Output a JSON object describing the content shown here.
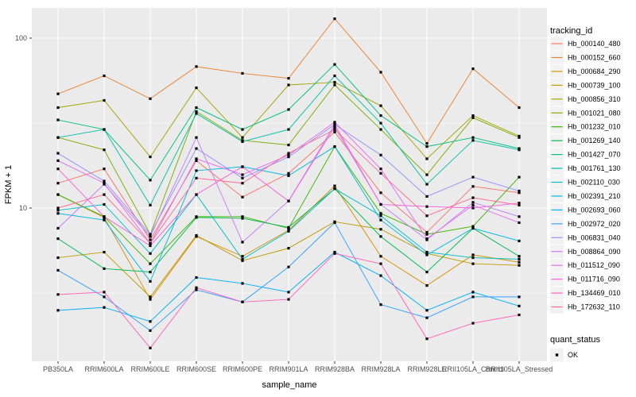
{
  "figure": {
    "background": "#FFFFFF",
    "panel_background": "#EBEBEB",
    "gridline_color": "#FFFFFF",
    "tick_color": "#333333",
    "tick_label_color": "#4D4D4D",
    "axis_title_color": "#000000",
    "marker_color": "#000000",
    "legend_key_fill": "#F2F2F2"
  },
  "chart_data": {
    "type": "line",
    "title": "",
    "xlabel": "sample_name",
    "ylabel": "FPKM + 1",
    "y_scale": "log10",
    "y_ticks": [
      100,
      10
    ],
    "y_minor_ticks": [
      31.623,
      3.162
    ],
    "ylim": [
      1.25,
      150
    ],
    "grid": true,
    "legend_position": "right",
    "color_legend_title": "tracking_id",
    "shape_legend_title": "quant_status",
    "shape_legend_items": [
      "OK"
    ],
    "categories": [
      "PB350LA",
      "RRIM600LA",
      "RRIM600LE",
      "RRIM600SE",
      "RRIM600PE",
      "RRIM901LA",
      "RRIM928BA",
      "RRIM928LA",
      "RRIM928LE",
      "RRII105LA_Control",
      "RRII105LA_Stressed"
    ],
    "series": [
      {
        "name": "Hb_000140_480",
        "color": "#F8766D",
        "values": [
          14,
          17,
          6.5,
          19,
          11.6,
          16,
          28,
          12.3,
          7.2,
          13.4,
          12.3
        ]
      },
      {
        "name": "Hb_000152_660",
        "color": "#EA8331",
        "values": [
          47,
          60,
          44,
          68,
          62,
          58,
          130,
          63,
          24,
          66,
          39
        ]
      },
      {
        "name": "Hb_000684_290",
        "color": "#D89000",
        "values": [
          12,
          8.8,
          2.9,
          6.8,
          5.2,
          7.4,
          13.5,
          5.2,
          3.5,
          5.3,
          4.8
        ]
      },
      {
        "name": "Hb_000739_100",
        "color": "#C09B00",
        "values": [
          5.1,
          5.5,
          3.0,
          6.9,
          4.9,
          5.8,
          8.3,
          7.5,
          5.4,
          4.7,
          4.6
        ]
      },
      {
        "name": "Hb_000856_310",
        "color": "#A3A500",
        "values": [
          39,
          43,
          20,
          51,
          26,
          53,
          55,
          40,
          19.5,
          35,
          26.5
        ]
      },
      {
        "name": "Hb_001021_080",
        "color": "#7CAE00",
        "values": [
          26,
          22,
          7.0,
          37,
          25,
          23.5,
          53,
          29,
          15.7,
          34,
          26
        ]
      },
      {
        "name": "Hb_001232_010",
        "color": "#39B600",
        "values": [
          12,
          8.9,
          4.7,
          8.9,
          8.9,
          7.6,
          23,
          9.3,
          7.0,
          7.8,
          15.2
        ]
      },
      {
        "name": "Hb_001269_140",
        "color": "#00BB4E",
        "values": [
          6.6,
          4.4,
          4.2,
          8.8,
          8.7,
          7.7,
          13,
          6.8,
          4.2,
          7.6,
          5.2
        ]
      },
      {
        "name": "Hb_001427_070",
        "color": "#00BF7D",
        "values": [
          33,
          29,
          14.6,
          39,
          29,
          38,
          70,
          35,
          23,
          26,
          22.4
        ]
      },
      {
        "name": "Hb_001761_130",
        "color": "#00C1A3",
        "values": [
          26,
          29,
          10.4,
          36,
          24.6,
          29,
          60,
          31.6,
          13.8,
          25,
          22
        ]
      },
      {
        "name": "Hb_002110_030",
        "color": "#00BFC4",
        "values": [
          9.7,
          10.5,
          5.4,
          12,
          5.0,
          7.3,
          13,
          9.0,
          5.5,
          5.1,
          5.0
        ]
      },
      {
        "name": "Hb_002391_210",
        "color": "#00BAE0",
        "values": [
          9.3,
          8.5,
          3.7,
          16.6,
          17.5,
          15.5,
          23,
          8.5,
          5.3,
          7.6,
          6.4
        ]
      },
      {
        "name": "Hb_002693_060",
        "color": "#00B0F6",
        "values": [
          2.5,
          2.6,
          2.15,
          3.9,
          3.6,
          3.2,
          5.5,
          4.0,
          2.5,
          3.2,
          2.65
        ]
      },
      {
        "name": "Hb_002972_020",
        "color": "#35A2FF",
        "values": [
          4.3,
          3.0,
          1.9,
          3.3,
          2.8,
          4.5,
          8.2,
          2.7,
          2.26,
          3.0,
          3.0
        ]
      },
      {
        "name": "Hb_006831_040",
        "color": "#9590FF",
        "values": [
          21,
          14.4,
          7.0,
          22.4,
          15.0,
          20,
          31,
          20.5,
          11.7,
          15.2,
          12.6
        ]
      },
      {
        "name": "Hb_008864_090",
        "color": "#C77CFF",
        "values": [
          7.6,
          13.8,
          6.8,
          26,
          6.3,
          11,
          30,
          10.5,
          6.5,
          10.8,
          8.9
        ]
      },
      {
        "name": "Hb_011512_090",
        "color": "#E76BF3",
        "values": [
          19,
          14.0,
          6.2,
          19.5,
          15.7,
          20.5,
          32,
          17,
          6.6,
          10.4,
          8.2
        ]
      },
      {
        "name": "Hb_011716_090",
        "color": "#FA62DB",
        "values": [
          17,
          8.9,
          6.0,
          12,
          17.5,
          11.0,
          31,
          10.5,
          10.2,
          10.0,
          10.7
        ]
      },
      {
        "name": "Hb_134469_010",
        "color": "#FF62BC",
        "values": [
          3.1,
          3.2,
          1.5,
          3.4,
          2.8,
          2.9,
          5.4,
          4.7,
          1.7,
          2.1,
          2.35
        ]
      },
      {
        "name": "Hb_172632_110",
        "color": "#FF6A98",
        "values": [
          10,
          12,
          6.2,
          15,
          14,
          21,
          29,
          16,
          9.0,
          11.5,
          10.4
        ]
      }
    ]
  }
}
